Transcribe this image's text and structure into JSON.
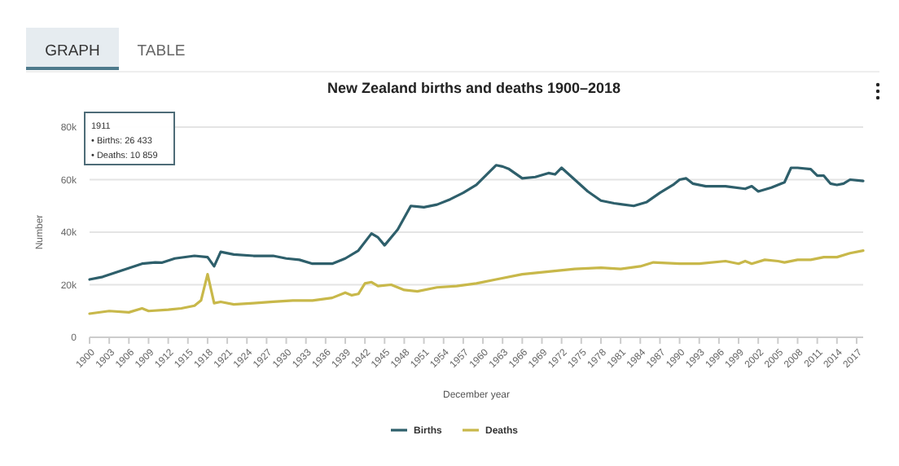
{
  "chart_data": {
    "type": "line",
    "title": "New Zealand births and deaths 1900–2018",
    "xlabel": "December year",
    "ylabel": "Number",
    "annotations": [
      "GRAPH",
      "TABLE",
      "1911",
      "• Births: 26 433",
      "• Deaths: 10 859"
    ],
    "xlim": [
      1900,
      2018
    ],
    "xticks": [
      1900,
      1903,
      1906,
      1909,
      1912,
      1915,
      1918,
      1921,
      1924,
      1927,
      1930,
      1933,
      1936,
      1939,
      1942,
      1945,
      1948,
      1951,
      1954,
      1957,
      1960,
      1963,
      1966,
      1969,
      1972,
      1975,
      1978,
      1981,
      1984,
      1987,
      1990,
      1993,
      1996,
      1999,
      2002,
      2005,
      2008,
      2011,
      2014,
      2017
    ],
    "ylim": [
      0,
      80000
    ],
    "yticks": [
      {
        "value": 0,
        "label": "0"
      },
      {
        "value": 20000,
        "label": "20k"
      },
      {
        "value": 40000,
        "label": "40k"
      },
      {
        "value": 60000,
        "label": "60k"
      },
      {
        "value": 80000,
        "label": "80k"
      }
    ],
    "grid": "y",
    "legend": "bottom",
    "marker": "none",
    "line_style": "solid",
    "series": [
      {
        "name": "Births",
        "color": "#2e5f6b",
        "x": [
          1900,
          1902,
          1905,
          1908,
          1910,
          1911,
          1913,
          1916,
          1918,
          1919,
          1920,
          1922,
          1925,
          1928,
          1930,
          1932,
          1934,
          1937,
          1939,
          1941,
          1943,
          1944,
          1945,
          1947,
          1949,
          1951,
          1953,
          1955,
          1957,
          1959,
          1961,
          1962,
          1963,
          1964,
          1966,
          1968,
          1970,
          1971,
          1972,
          1974,
          1976,
          1978,
          1980,
          1983,
          1985,
          1987,
          1989,
          1990,
          1991,
          1992,
          1994,
          1997,
          2000,
          2001,
          2002,
          2004,
          2006,
          2007,
          2008,
          2010,
          2011,
          2012,
          2013,
          2014,
          2015,
          2016,
          2018
        ],
        "values": [
          22000,
          23000,
          25500,
          28000,
          28500,
          28400,
          30000,
          31000,
          30500,
          27000,
          32500,
          31500,
          31000,
          31000,
          30000,
          29500,
          28000,
          28000,
          30000,
          33000,
          39500,
          38000,
          35000,
          41000,
          50000,
          49500,
          50500,
          52500,
          55000,
          58000,
          63000,
          65500,
          65000,
          64000,
          60500,
          61000,
          62500,
          62000,
          64500,
          60000,
          55500,
          52000,
          51000,
          50000,
          51500,
          55000,
          58000,
          60000,
          60500,
          58500,
          57500,
          57500,
          56500,
          57500,
          55500,
          57000,
          59000,
          64500,
          64500,
          64000,
          61500,
          61500,
          58500,
          58000,
          58500,
          60000,
          59500
        ]
      },
      {
        "name": "Deaths",
        "color": "#c8b84a",
        "x": [
          1900,
          1903,
          1906,
          1908,
          1909,
          1912,
          1914,
          1916,
          1917,
          1918,
          1919,
          1920,
          1922,
          1925,
          1928,
          1931,
          1934,
          1937,
          1939,
          1940,
          1941,
          1942,
          1943,
          1944,
          1946,
          1948,
          1950,
          1953,
          1956,
          1959,
          1962,
          1966,
          1970,
          1974,
          1978,
          1981,
          1984,
          1986,
          1990,
          1993,
          1997,
          1999,
          2000,
          2001,
          2003,
          2005,
          2006,
          2008,
          2010,
          2012,
          2014,
          2016,
          2018
        ],
        "values": [
          9000,
          10000,
          9500,
          11000,
          10000,
          10500,
          11000,
          12000,
          14000,
          24000,
          13000,
          13500,
          12500,
          13000,
          13500,
          14000,
          14000,
          15000,
          17000,
          16000,
          16500,
          20500,
          21000,
          19500,
          20000,
          18000,
          17500,
          19000,
          19500,
          20500,
          22000,
          24000,
          25000,
          26000,
          26500,
          26000,
          27000,
          28500,
          28000,
          28000,
          29000,
          28000,
          29000,
          28000,
          29500,
          29000,
          28500,
          29500,
          29500,
          30500,
          30500,
          32000,
          33000
        ]
      }
    ]
  }
}
